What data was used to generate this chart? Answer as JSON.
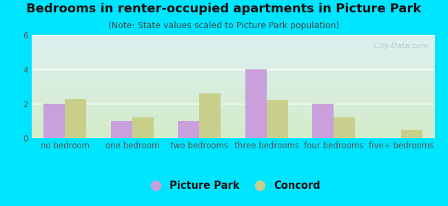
{
  "title": "Bedrooms in renter-occupied apartments in Picture Park",
  "subtitle": "(Note: State values scaled to Picture Park population)",
  "categories": [
    "no bedroom",
    "one bedroom",
    "two bedrooms",
    "three bedrooms",
    "four bedrooms",
    "five+ bedrooms"
  ],
  "picture_park_values": [
    2.0,
    1.0,
    1.0,
    4.0,
    2.0,
    0.0
  ],
  "concord_values": [
    2.3,
    1.2,
    2.6,
    2.2,
    1.2,
    0.5
  ],
  "picture_park_color": "#c9a0dc",
  "concord_color": "#c8cf8a",
  "ylim": [
    0,
    6
  ],
  "yticks": [
    0,
    2,
    4,
    6
  ],
  "background_outer": "#00e5ff",
  "background_plot_top": "#ddf0f0",
  "background_plot_bottom": "#d4ecca",
  "watermark": "  City-Data.com",
  "bar_width": 0.32,
  "title_fontsize": 13,
  "subtitle_fontsize": 9,
  "tick_fontsize": 8.5,
  "legend_fontsize": 10.5,
  "grid_color": "#ffffff",
  "tick_color": "#555555"
}
